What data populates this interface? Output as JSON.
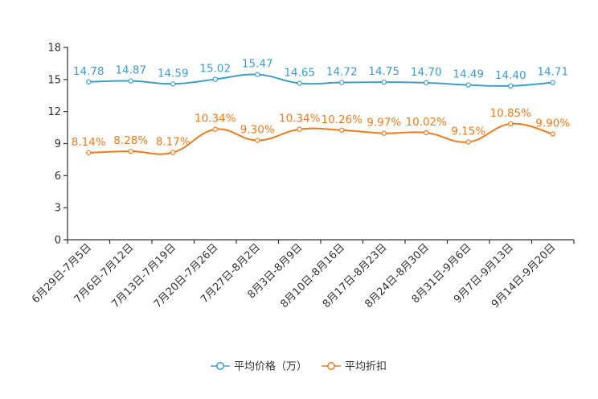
{
  "chart_data": {
    "type": "line",
    "title": "",
    "xlabel": "",
    "ylabel": "",
    "ylim": [
      0,
      18
    ],
    "yticks": [
      0,
      3,
      6,
      9,
      12,
      15,
      18
    ],
    "categories": [
      "6月29日-7月5日",
      "7月6日-7月12日",
      "7月13日-7月19日",
      "7月20日-7月26日",
      "7月27日-8月2日",
      "8月3日-8月9日",
      "8月10日-8月16日",
      "8月17日-8月23日",
      "8月24日-8月30日",
      "8月31日-9月6日",
      "9月7日-9月13日",
      "9月14日-9月20日"
    ],
    "series": [
      {
        "name": "平均价格（万）",
        "color": "#3e9dcd",
        "values": [
          14.78,
          14.87,
          14.59,
          15.02,
          15.47,
          14.65,
          14.72,
          14.75,
          14.7,
          14.49,
          14.4,
          14.71
        ],
        "labels": [
          "14.78",
          "14.87",
          "14.59",
          "15.02",
          "15.47",
          "14.65",
          "14.72",
          "14.75",
          "14.70",
          "14.49",
          "14.40",
          "14.71"
        ]
      },
      {
        "name": "平均折扣",
        "color": "#f07a1c",
        "values": [
          8.14,
          8.28,
          8.17,
          10.34,
          9.3,
          10.34,
          10.26,
          9.97,
          10.02,
          9.15,
          10.85,
          9.9
        ],
        "labels": [
          "8.14%",
          "8.28%",
          "8.17%",
          "10.34%",
          "9.30%",
          "10.34%",
          "10.26%",
          "9.97%",
          "10.02%",
          "9.15%",
          "10.85%",
          "9.90%"
        ]
      }
    ],
    "legend_position": "bottom"
  }
}
